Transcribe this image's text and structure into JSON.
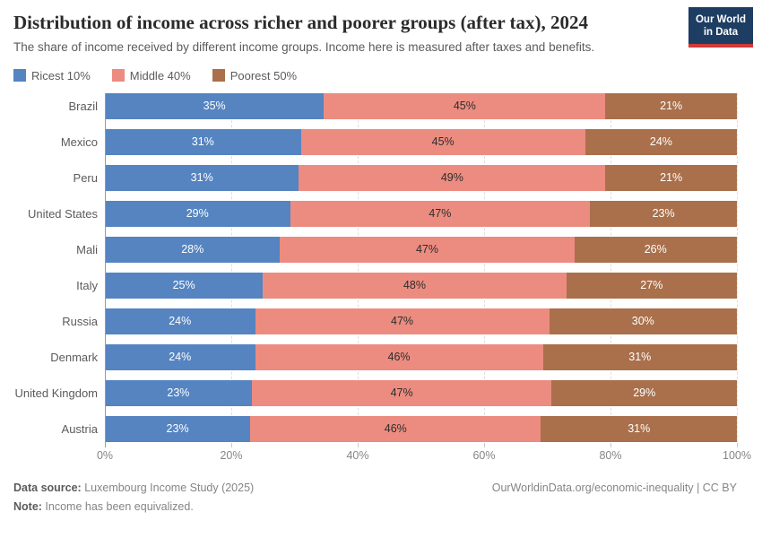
{
  "header": {
    "title": "Distribution of income across richer and poorer groups (after tax), 2024",
    "subtitle": "The share of income received by different income groups. Income here is measured after taxes and benefits.",
    "logo_line1": "Our World",
    "logo_line2": "in Data",
    "logo_bg": "#1d3d63",
    "logo_accent": "#cf3a3a"
  },
  "chart_data": {
    "type": "bar",
    "orientation": "horizontal",
    "stacked": true,
    "categories": [
      "Brazil",
      "Mexico",
      "Peru",
      "United States",
      "Mali",
      "Italy",
      "Russia",
      "Denmark",
      "United Kingdom",
      "Austria"
    ],
    "series": [
      {
        "name": "Ricest 10%",
        "color": "#5584c1",
        "label_color": "#ffffff",
        "values": [
          35,
          31,
          31,
          29,
          28,
          25,
          24,
          24,
          23,
          23
        ]
      },
      {
        "name": "Middle 40%",
        "color": "#ec8c80",
        "label_color": "#2d2d2d",
        "values": [
          45,
          45,
          49,
          47,
          47,
          48,
          47,
          46,
          47,
          46
        ]
      },
      {
        "name": "Poorest 50%",
        "color": "#a9704b",
        "label_color": "#ffffff",
        "values": [
          21,
          24,
          21,
          23,
          26,
          27,
          30,
          31,
          29,
          31
        ]
      }
    ],
    "value_suffix": "%",
    "x_ticks": [
      0,
      20,
      40,
      60,
      80,
      100
    ],
    "x_tick_labels": [
      "0%",
      "20%",
      "40%",
      "60%",
      "80%",
      "100%"
    ],
    "xlim": [
      0,
      100
    ],
    "grid": "vertical-dashed",
    "legend_position": "top-left",
    "title": "Distribution of income across richer and poorer groups (after tax), 2024",
    "xlabel": "",
    "ylabel": ""
  },
  "footer": {
    "source_label": "Data source:",
    "source_text": " Luxembourg Income Study (2025)",
    "note_label": "Note:",
    "note_text": " Income has been equivalized.",
    "right_text": "OurWorldinData.org/economic-inequality | CC BY"
  }
}
